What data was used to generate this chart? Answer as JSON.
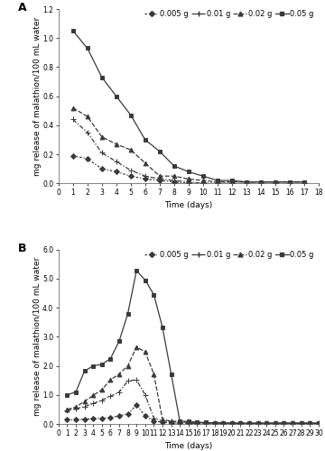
{
  "panel_A": {
    "label": "A",
    "series": {
      "0.005 g": {
        "x": [
          1,
          2,
          3,
          4,
          5,
          6,
          7,
          8,
          9,
          10,
          11,
          12,
          13,
          14,
          15,
          16,
          17
        ],
        "y": [
          0.19,
          0.17,
          0.1,
          0.08,
          0.05,
          0.03,
          0.02,
          0.01,
          0.0,
          0.0,
          0.0,
          0.0,
          0.0,
          0.0,
          0.0,
          0.0,
          0.0
        ]
      },
      "0.01 g": {
        "x": [
          1,
          2,
          3,
          4,
          5,
          6,
          7,
          8,
          9,
          10,
          11,
          12,
          13,
          14,
          15,
          16,
          17
        ],
        "y": [
          0.44,
          0.35,
          0.21,
          0.15,
          0.09,
          0.05,
          0.03,
          0.02,
          0.01,
          0.0,
          0.0,
          0.0,
          0.0,
          0.0,
          0.0,
          0.0,
          0.0
        ]
      },
      "0.02 g": {
        "x": [
          1,
          2,
          3,
          4,
          5,
          6,
          7,
          8,
          9,
          10,
          11,
          12,
          13,
          14,
          15,
          16,
          17
        ],
        "y": [
          0.52,
          0.46,
          0.32,
          0.27,
          0.23,
          0.14,
          0.05,
          0.05,
          0.03,
          0.02,
          0.01,
          0.01,
          0.01,
          0.01,
          0.01,
          0.01,
          0.01
        ]
      },
      "0.05 g": {
        "x": [
          1,
          2,
          3,
          4,
          5,
          6,
          7,
          8,
          9,
          10,
          11,
          12,
          13,
          14,
          15,
          16,
          17
        ],
        "y": [
          1.05,
          0.93,
          0.73,
          0.6,
          0.47,
          0.3,
          0.22,
          0.12,
          0.08,
          0.05,
          0.02,
          0.02,
          0.01,
          0.01,
          0.01,
          0.01,
          0.01
        ]
      }
    },
    "ylabel": "mg release of malathion/100 mL water",
    "xlabel": "Time (days)",
    "ylim": [
      0,
      1.2
    ],
    "yticks": [
      0.0,
      0.2,
      0.4,
      0.6,
      0.8,
      1.0,
      1.2
    ],
    "xlim": [
      0,
      18
    ],
    "xticks": [
      0,
      1,
      2,
      3,
      4,
      5,
      6,
      7,
      8,
      9,
      10,
      11,
      12,
      13,
      14,
      15,
      16,
      17,
      18
    ]
  },
  "panel_B": {
    "label": "B",
    "series": {
      "0.005 g": {
        "x": [
          1,
          2,
          3,
          4,
          5,
          6,
          7,
          8,
          9,
          10,
          11,
          12,
          13,
          14,
          15,
          16,
          17,
          18,
          19,
          20,
          21,
          22,
          23,
          24,
          25,
          26,
          27,
          28,
          29,
          30
        ],
        "y": [
          0.14,
          0.15,
          0.16,
          0.18,
          0.2,
          0.22,
          0.28,
          0.35,
          0.65,
          0.28,
          0.1,
          0.06,
          0.04,
          0.03,
          0.02,
          0.02,
          0.02,
          0.01,
          0.01,
          0.01,
          0.01,
          0.01,
          0.01,
          0.01,
          0.01,
          0.01,
          0.01,
          0.01,
          0.01,
          0.01
        ]
      },
      "0.01 g": {
        "x": [
          1,
          2,
          3,
          4,
          5,
          6,
          7,
          8,
          9,
          10,
          11,
          12,
          13,
          14,
          15,
          16,
          17,
          18,
          19,
          20,
          21,
          22,
          23,
          24,
          25,
          26,
          27,
          28,
          29,
          30
        ],
        "y": [
          0.48,
          0.52,
          0.6,
          0.7,
          0.82,
          0.95,
          1.1,
          1.48,
          1.52,
          1.0,
          0.2,
          0.1,
          0.08,
          0.06,
          0.05,
          0.04,
          0.03,
          0.03,
          0.02,
          0.02,
          0.02,
          0.02,
          0.02,
          0.02,
          0.02,
          0.02,
          0.02,
          0.02,
          0.02,
          0.02
        ]
      },
      "0.02 g": {
        "x": [
          1,
          2,
          3,
          4,
          5,
          6,
          7,
          8,
          9,
          10,
          11,
          12,
          13,
          14,
          15,
          16,
          17,
          18,
          19,
          20,
          21,
          22,
          23,
          24,
          25,
          26,
          27,
          28,
          29,
          30
        ],
        "y": [
          0.5,
          0.58,
          0.78,
          0.98,
          1.18,
          1.52,
          1.72,
          2.0,
          2.65,
          2.48,
          1.72,
          0.15,
          0.1,
          0.08,
          0.06,
          0.05,
          0.04,
          0.03,
          0.03,
          0.02,
          0.02,
          0.02,
          0.02,
          0.02,
          0.02,
          0.02,
          0.02,
          0.02,
          0.02,
          0.02
        ]
      },
      "0.05 g": {
        "x": [
          1,
          2,
          3,
          4,
          5,
          6,
          7,
          8,
          9,
          10,
          11,
          12,
          13,
          14,
          15,
          16,
          17,
          18,
          19,
          20,
          21,
          22,
          23,
          24,
          25,
          26,
          27,
          28,
          29,
          30
        ],
        "y": [
          1.0,
          1.1,
          1.82,
          2.0,
          2.05,
          2.25,
          2.85,
          3.8,
          5.28,
          4.95,
          4.45,
          3.32,
          1.72,
          0.1,
          0.08,
          0.06,
          0.05,
          0.04,
          0.04,
          0.03,
          0.03,
          0.03,
          0.03,
          0.03,
          0.03,
          0.03,
          0.03,
          0.03,
          0.03,
          0.03
        ]
      }
    },
    "ylabel": "mg release of malathion/100 mL water",
    "xlabel": "Time (days)",
    "ylim": [
      0,
      6.0
    ],
    "yticks": [
      0.0,
      1.0,
      2.0,
      3.0,
      4.0,
      5.0,
      6.0
    ],
    "xlim": [
      0,
      30
    ],
    "xticks": [
      0,
      1,
      2,
      3,
      4,
      5,
      6,
      7,
      8,
      9,
      10,
      11,
      12,
      13,
      14,
      15,
      16,
      17,
      18,
      19,
      20,
      21,
      22,
      23,
      24,
      25,
      26,
      27,
      28,
      29,
      30
    ]
  },
  "line_color": "#3a3a3a",
  "legend_order": [
    "0.005 g",
    "0.01 g",
    "0.02 g",
    "0.05 g"
  ],
  "marker_styles": {
    "0.005 g": {
      "marker": "D",
      "markersize": 3.0,
      "linestyle": "dashdot"
    },
    "0.01 g": {
      "marker": "+",
      "markersize": 5.0,
      "linestyle": "dashdot"
    },
    "0.02 g": {
      "marker": "^",
      "markersize": 3.5,
      "linestyle": "dashed"
    },
    "0.05 g": {
      "marker": "s",
      "markersize": 3.5,
      "linestyle": "solid"
    }
  },
  "font_size": 6.5,
  "label_fontsize": 6.5,
  "tick_fontsize": 5.5
}
